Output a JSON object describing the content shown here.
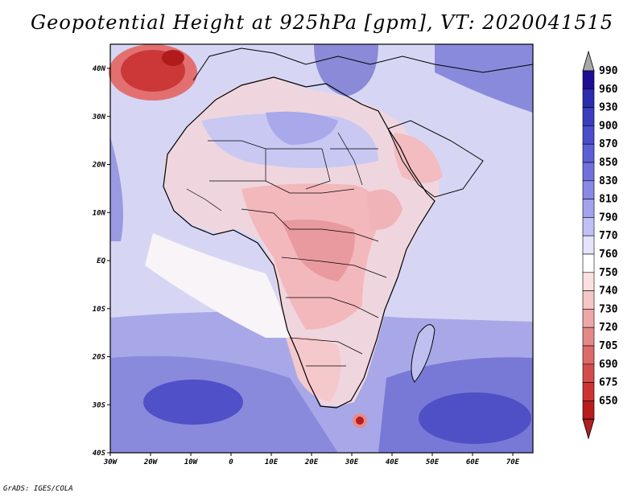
{
  "title": "Geopotential Height at 925hPa [gpm], VT: 2020041515",
  "credit": "GrADS: IGES/COLA",
  "map": {
    "region": "Africa",
    "lon_labels": [
      "30W",
      "20W",
      "10W",
      "0",
      "10E",
      "20E",
      "30E",
      "40E",
      "50E",
      "60E",
      "70E"
    ],
    "lat_labels": [
      "40N",
      "30N",
      "20N",
      "10N",
      "EQ",
      "10S",
      "20S",
      "30S",
      "40S"
    ],
    "ocean_color": "#d8d8f4",
    "land_color": "#f2e2e8"
  },
  "colorbar": {
    "levels": [
      "990",
      "960",
      "930",
      "900",
      "870",
      "850",
      "830",
      "810",
      "790",
      "770",
      "760",
      "750",
      "740",
      "730",
      "720",
      "705",
      "690",
      "675",
      "650"
    ],
    "colors": [
      "#1e0e96",
      "#2c2cb0",
      "#3c3cc0",
      "#4c4ccc",
      "#5e5ed6",
      "#7070de",
      "#8888e6",
      "#a2a2ee",
      "#c0c0f4",
      "#e4e4fa",
      "#ffffff",
      "#fae0e0",
      "#f4c6c6",
      "#eca8a8",
      "#e48888",
      "#dc6a6a",
      "#d44c4c",
      "#cc3434",
      "#b81c1c"
    ],
    "top_arrow_color": "#a8a8a8",
    "bottom_arrow_color": "#b02020"
  }
}
